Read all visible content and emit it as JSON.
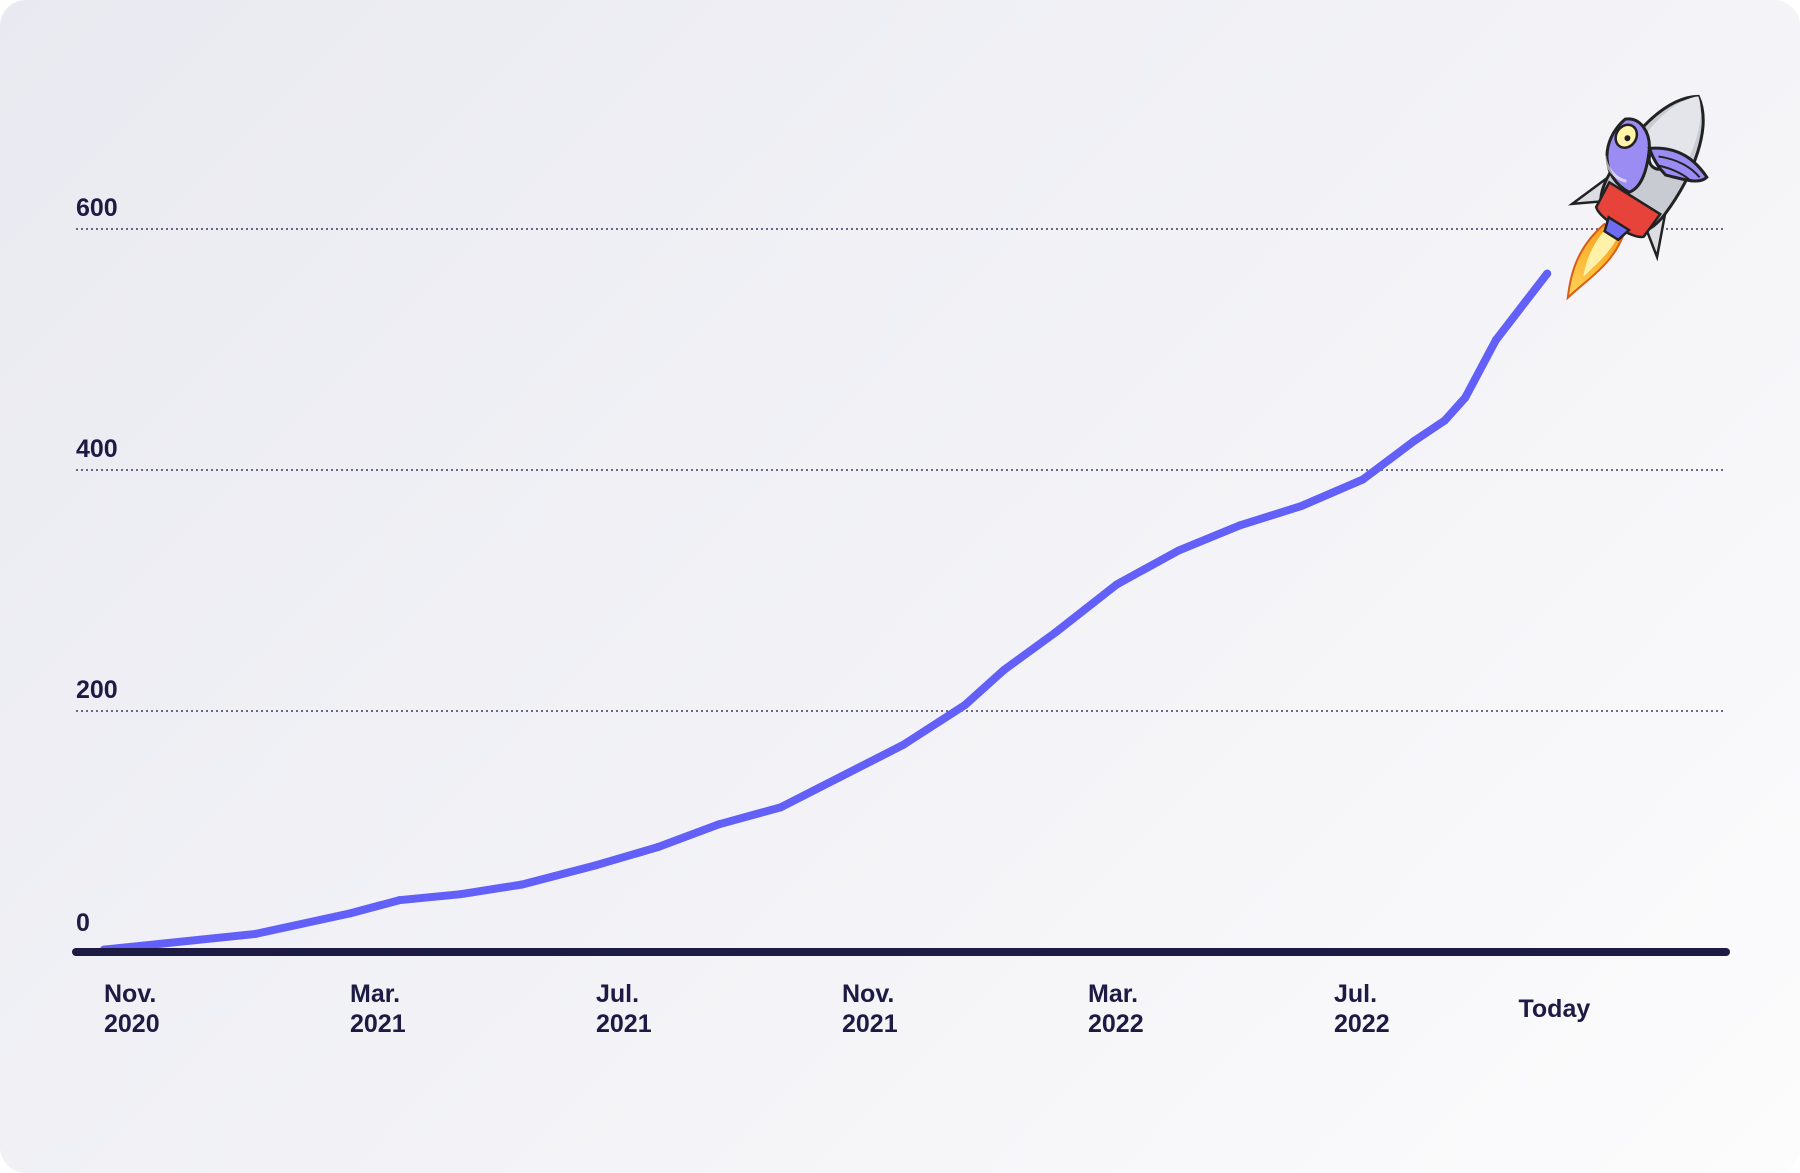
{
  "colors": {
    "line": "#6260f9",
    "axis": "#1d1a44",
    "text": "#1d1a44",
    "grid": "#1d1a44"
  },
  "chart_data": {
    "type": "line",
    "y_ticks": [
      {
        "value": 0,
        "label": "0"
      },
      {
        "value": 200,
        "label": "200"
      },
      {
        "value": 400,
        "label": "400"
      },
      {
        "value": 600,
        "label": "600"
      }
    ],
    "x_ticks": [
      {
        "x": "2020-11",
        "lines": [
          "Nov.",
          "2020"
        ]
      },
      {
        "x": "2021-03",
        "lines": [
          "Mar.",
          "2021"
        ]
      },
      {
        "x": "2021-07",
        "lines": [
          "Jul.",
          "2021"
        ]
      },
      {
        "x": "2021-11",
        "lines": [
          "Nov.",
          "2021"
        ]
      },
      {
        "x": "2022-03",
        "lines": [
          "Mar.",
          "2022"
        ]
      },
      {
        "x": "2022-07",
        "lines": [
          "Jul.",
          "2022"
        ]
      },
      {
        "x": "2022-10",
        "lines": [
          "Today"
        ]
      }
    ],
    "ylim": [
      0,
      680
    ],
    "grid": true,
    "series": [
      {
        "points": [
          {
            "x": "2020-11-01",
            "y": 2
          },
          {
            "x": "2021-01-15",
            "y": 15
          },
          {
            "x": "2021-03-01",
            "y": 32
          },
          {
            "x": "2021-03-25",
            "y": 43
          },
          {
            "x": "2021-04-25",
            "y": 48
          },
          {
            "x": "2021-05-25",
            "y": 56
          },
          {
            "x": "2021-07-01",
            "y": 72
          },
          {
            "x": "2021-08-01",
            "y": 87
          },
          {
            "x": "2021-09-01",
            "y": 106
          },
          {
            "x": "2021-10-01",
            "y": 120
          },
          {
            "x": "2021-11-01",
            "y": 146
          },
          {
            "x": "2021-12-01",
            "y": 172
          },
          {
            "x": "2022-01-01",
            "y": 205
          },
          {
            "x": "2022-01-20",
            "y": 234
          },
          {
            "x": "2022-02-15",
            "y": 265
          },
          {
            "x": "2022-03-15",
            "y": 305
          },
          {
            "x": "2022-04-15",
            "y": 333
          },
          {
            "x": "2022-05-15",
            "y": 354
          },
          {
            "x": "2022-06-15",
            "y": 370
          },
          {
            "x": "2022-07-15",
            "y": 392
          },
          {
            "x": "2022-08-10",
            "y": 424
          },
          {
            "x": "2022-08-25",
            "y": 441
          },
          {
            "x": "2022-09-05",
            "y": 460
          },
          {
            "x": "2022-09-20",
            "y": 508
          },
          {
            "x": "2022-10-15",
            "y": 563
          }
        ]
      }
    ]
  }
}
